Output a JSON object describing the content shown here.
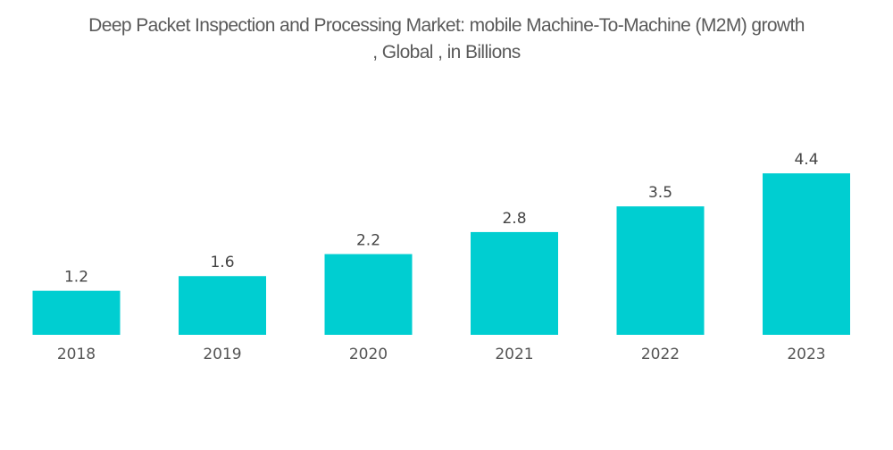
{
  "chart_data": {
    "type": "bar",
    "title": "Deep Packet Inspection and Processing Market: mobile Machine-To-Machine (M2M) growth , Global , in Billions",
    "title_lines": [
      "Deep Packet Inspection and Processing Market: mobile Machine-To-Machine (M2M) growth",
      ", Global , in Billions"
    ],
    "categories": [
      "2018",
      "2019",
      "2020",
      "2021",
      "2022",
      "2023"
    ],
    "values": [
      1.2,
      1.6,
      2.2,
      2.8,
      3.5,
      4.4
    ],
    "data_labels": [
      "1.2",
      "1.6",
      "2.2",
      "2.8",
      "3.5",
      "4.4"
    ],
    "xlabel": "",
    "ylabel": "",
    "ylim": [
      0,
      4.6
    ],
    "grid": false,
    "legend": "none",
    "bar_color": "#00CED1"
  }
}
